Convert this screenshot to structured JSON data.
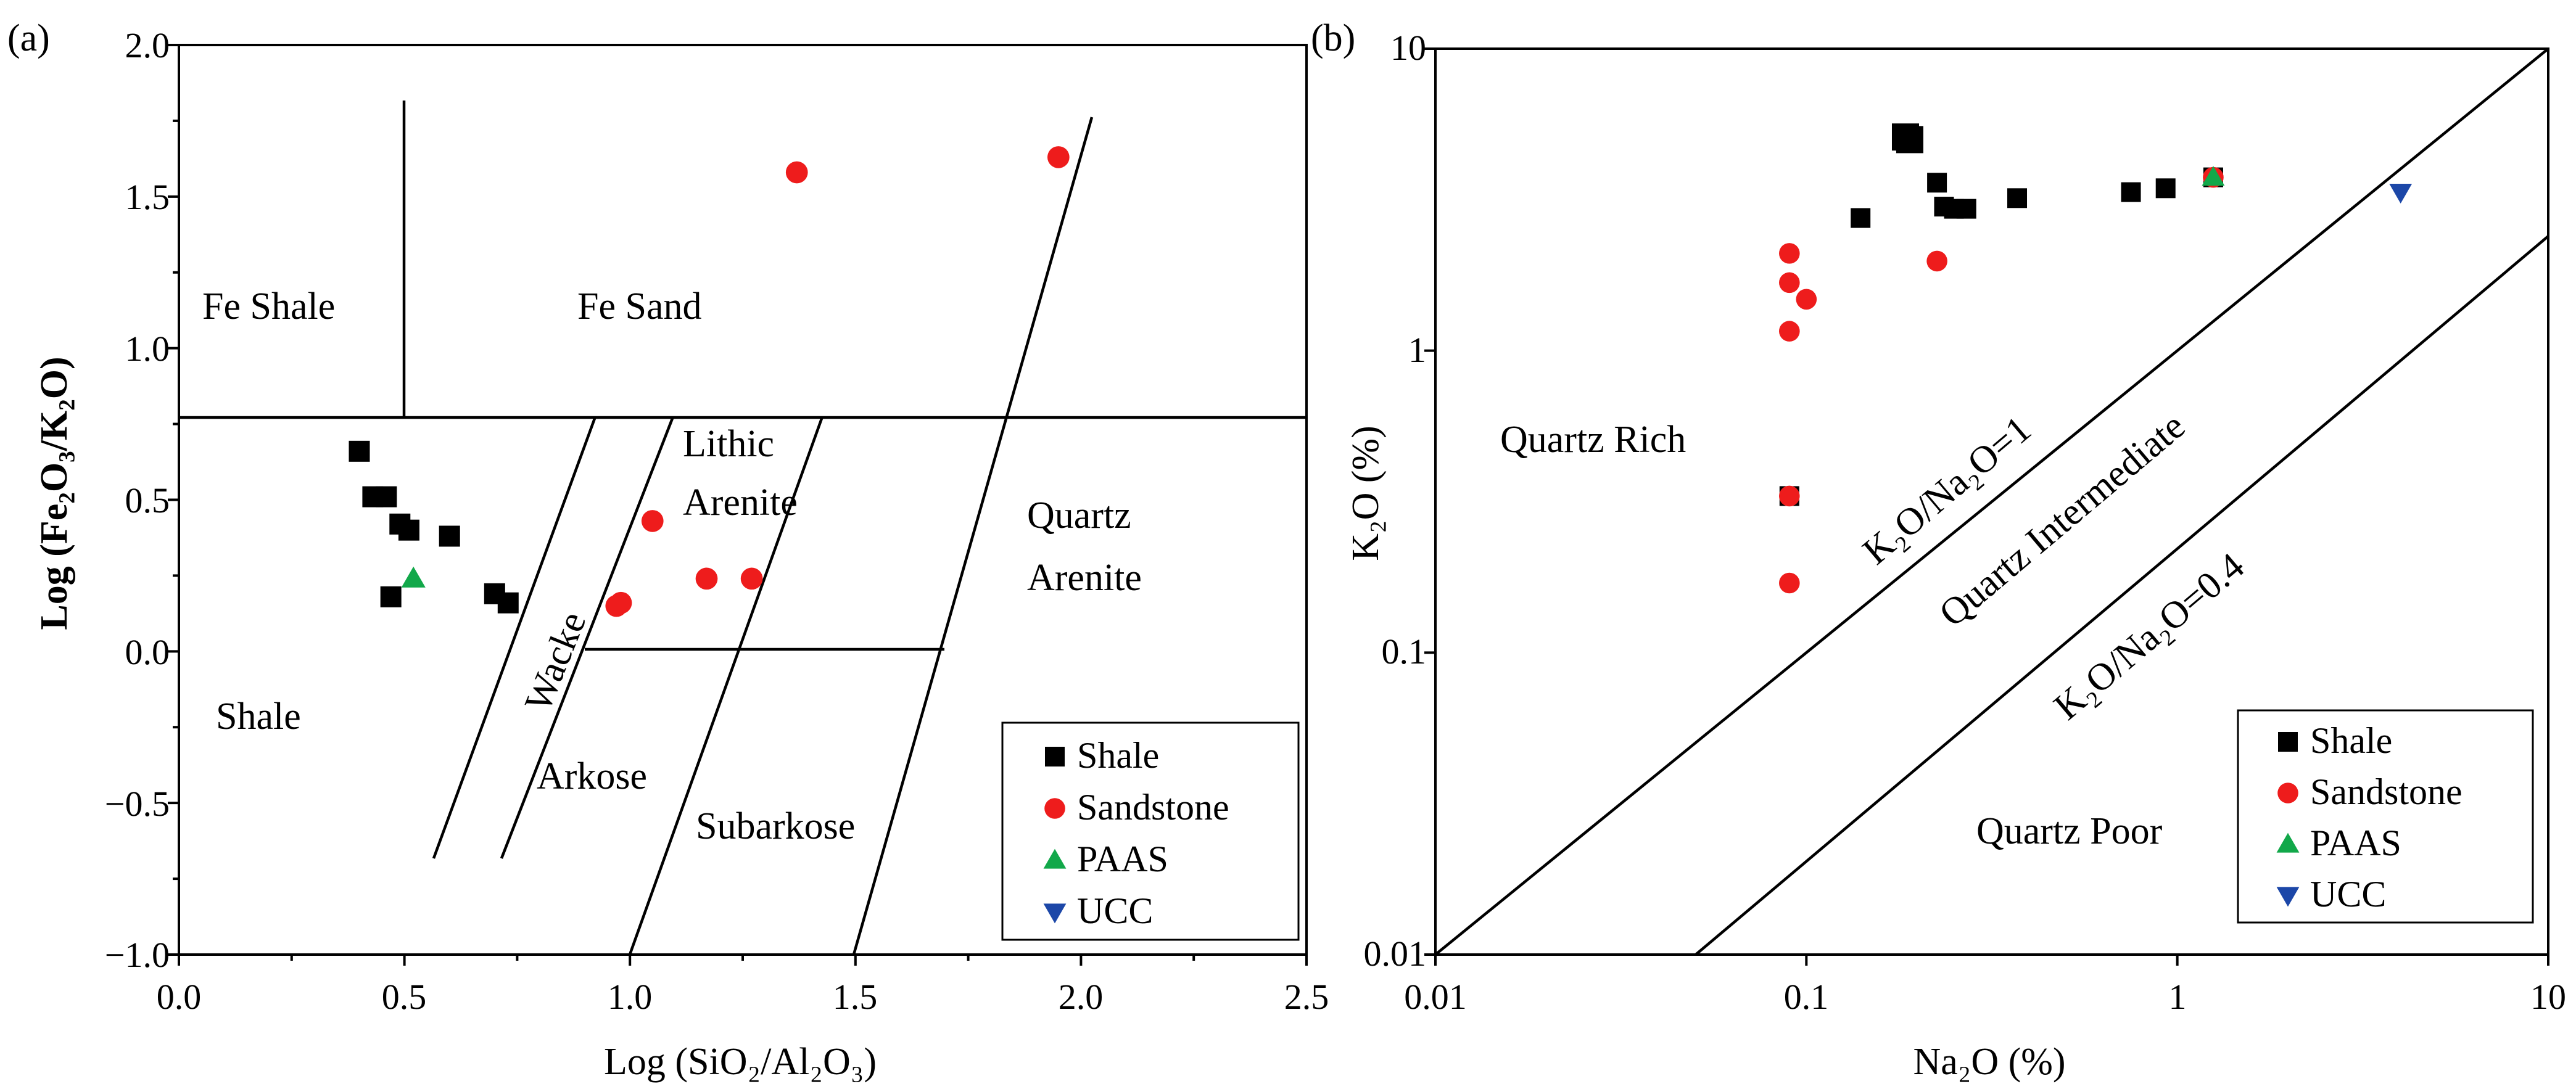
{
  "chart_data": [
    {
      "type": "scatter",
      "panel_label": "(a)",
      "xlabel": "Log (SiO₂/Al₂O₃)",
      "ylabel": "Log (Fe₂O₃/K₂O)",
      "xlim": [
        0,
        2.5
      ],
      "ylim": [
        -1.0,
        2.0
      ],
      "xticks": [
        "0.0",
        "0.5",
        "1.0",
        "1.5",
        "2.0",
        "2.5"
      ],
      "yticks": [
        "−1.0",
        "−0.5",
        "0.0",
        "0.5",
        "1.0",
        "1.5",
        "2.0"
      ],
      "regions": [
        "Fe Shale",
        "Fe Sand",
        "Lithic",
        "Arenite",
        "Quartz",
        "Arenite",
        "Shale",
        "Wacke",
        "Arkose",
        "Subarkose"
      ],
      "series": [
        {
          "name": "Shale",
          "color": "#000000",
          "marker": "square",
          "points": [
            [
              0.4,
              0.66
            ],
            [
              0.43,
              0.51
            ],
            [
              0.46,
              0.51
            ],
            [
              0.49,
              0.42
            ],
            [
              0.51,
              0.4
            ],
            [
              0.6,
              0.38
            ],
            [
              0.47,
              0.18
            ],
            [
              0.7,
              0.19
            ],
            [
              0.73,
              0.16
            ]
          ]
        },
        {
          "name": "Sandstone",
          "color": "#ee1c1c",
          "marker": "circle",
          "points": [
            [
              1.37,
              1.58
            ],
            [
              1.95,
              1.63
            ],
            [
              1.05,
              0.43
            ],
            [
              0.97,
              0.15
            ],
            [
              0.98,
              0.16
            ],
            [
              1.17,
              0.24
            ],
            [
              1.27,
              0.24
            ]
          ]
        },
        {
          "name": "PAAS",
          "color": "#12a84a",
          "marker": "triangle-up",
          "points": [
            [
              0.52,
              0.24
            ]
          ]
        },
        {
          "name": "UCC",
          "color": "#1c47a8",
          "marker": "triangle-down",
          "points": []
        }
      ]
    },
    {
      "type": "scatter",
      "panel_label": "(b)",
      "xlabel": "Na₂O (%)",
      "ylabel": "K₂O (%)",
      "xscale": "log",
      "yscale": "log",
      "xlim": [
        0.01,
        10
      ],
      "ylim": [
        0.01,
        10
      ],
      "xticks": [
        "0.01",
        "0.1",
        "1",
        "10"
      ],
      "yticks": [
        "0.01",
        "0.1",
        "1",
        "10"
      ],
      "regions": [
        "Quartz Rich",
        "K₂O/Na₂O=1",
        "Quartz Intermediate",
        "K₂O/Na₂O=0.4",
        "Quartz Poor"
      ],
      "series": [
        {
          "name": "Shale",
          "color": "#000000",
          "marker": "square",
          "points": [
            [
              0.14,
              2.75
            ],
            [
              0.185,
              5.1
            ],
            [
              0.19,
              5.0
            ],
            [
              0.225,
              3.6
            ],
            [
              0.235,
              3.0
            ],
            [
              0.25,
              2.95
            ],
            [
              0.27,
              2.95
            ],
            [
              0.37,
              3.2
            ],
            [
              0.75,
              3.35
            ],
            [
              0.93,
              3.45
            ],
            [
              0.09,
              0.33
            ],
            [
              1.25,
              3.75
            ]
          ]
        },
        {
          "name": "Sandstone",
          "color": "#ee1c1c",
          "marker": "circle",
          "points": [
            [
              0.09,
              2.1
            ],
            [
              0.09,
              1.68
            ],
            [
              0.1,
              1.48
            ],
            [
              0.09,
              1.16
            ],
            [
              0.225,
              1.98
            ],
            [
              0.09,
              0.33
            ],
            [
              0.09,
              0.17
            ],
            [
              1.25,
              3.75
            ]
          ]
        },
        {
          "name": "PAAS",
          "color": "#12a84a",
          "marker": "triangle-up",
          "points": [
            [
              1.25,
              3.75
            ]
          ]
        },
        {
          "name": "UCC",
          "color": "#1c47a8",
          "marker": "triangle-down",
          "points": [
            [
              4.0,
              3.35
            ]
          ]
        }
      ]
    }
  ],
  "legend": {
    "items": [
      {
        "label": "Shale",
        "color": "#000000",
        "marker": "square"
      },
      {
        "label": "Sandstone",
        "color": "#ee1c1c",
        "marker": "circle"
      },
      {
        "label": "PAAS",
        "color": "#12a84a",
        "marker": "triangle-up"
      },
      {
        "label": "UCC",
        "color": "#1c47a8",
        "marker": "triangle-down"
      }
    ]
  }
}
